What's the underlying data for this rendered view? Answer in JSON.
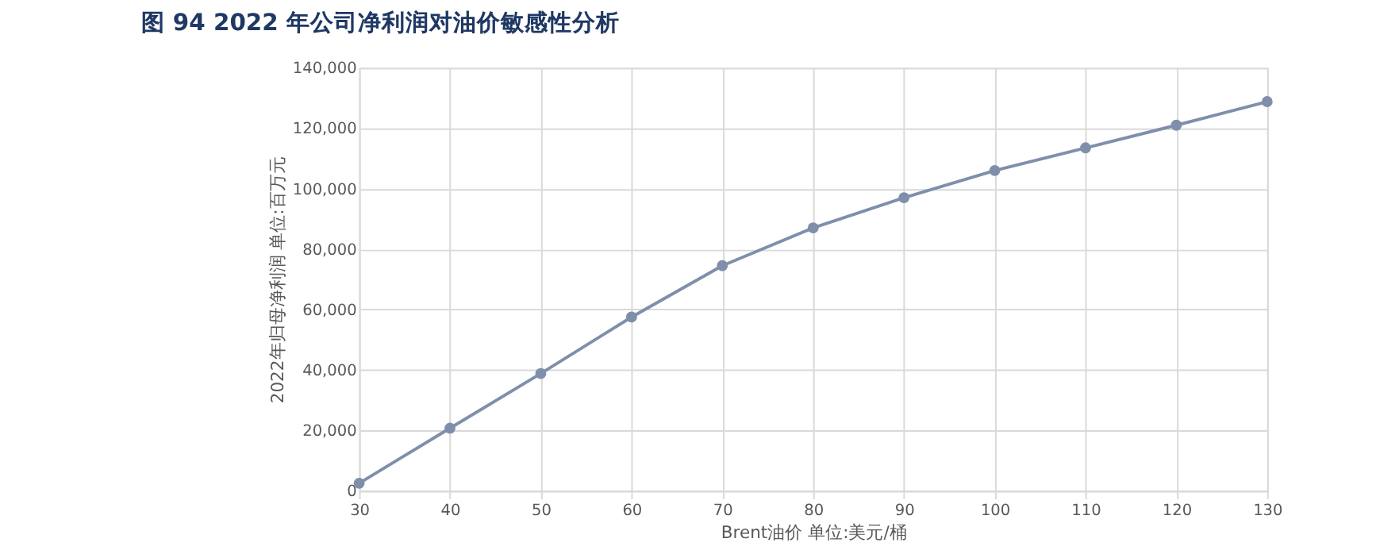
{
  "chart_data": {
    "type": "line",
    "title": "图 94  2022 年公司净利润对油价敏感性分析",
    "xlabel": "Brent油价  单位:美元/桶",
    "ylabel": "2022年归母净利润  单位:百万元",
    "x": [
      30,
      40,
      50,
      60,
      70,
      80,
      90,
      100,
      110,
      120,
      130
    ],
    "series": [
      {
        "color": "#7f8fab",
        "values": [
          2500,
          20700,
          38800,
          57500,
          74500,
          87000,
          97000,
          106000,
          113500,
          121000,
          128800
        ]
      }
    ],
    "xlim": [
      30,
      130
    ],
    "xticks": [
      30,
      40,
      50,
      60,
      70,
      80,
      90,
      100,
      110,
      120,
      130
    ],
    "ylim": [
      0,
      140000
    ],
    "yticks": [
      0,
      {
        "value": 20000,
        "label": "20,000"
      },
      {
        "value": 40000,
        "label": "40,000"
      },
      {
        "value": 60000,
        "label": "60,000"
      },
      {
        "value": 80000,
        "label": "80,000"
      },
      {
        "value": 100000,
        "label": "100,000"
      },
      {
        "value": 120000,
        "label": "120,000"
      },
      {
        "value": 140000,
        "label": "140,000"
      }
    ],
    "grid": true,
    "marker": "circle",
    "line_style": "solid"
  }
}
